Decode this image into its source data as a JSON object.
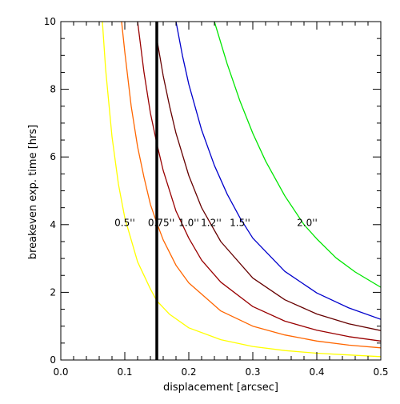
{
  "chart_data": {
    "type": "line",
    "title": "",
    "xlabel": "displacement [arcsec]",
    "ylabel": "breakeven exp. time [hrs]",
    "xlim": [
      0.0,
      0.5
    ],
    "ylim": [
      0,
      10
    ],
    "grid": false,
    "legend": "none",
    "x_ticks": [
      0.0,
      0.1,
      0.2,
      0.3,
      0.4,
      0.5
    ],
    "x_tick_labels": [
      "0.0",
      "0.1",
      "0.2",
      "0.3",
      "0.4",
      "0.5"
    ],
    "y_ticks": [
      0,
      2,
      4,
      6,
      8,
      10
    ],
    "y_tick_labels": [
      "0",
      "2",
      "4",
      "6",
      "8",
      "10"
    ],
    "series": [
      {
        "color": "#ffff00",
        "points": [
          [
            0.065,
            10.0
          ],
          [
            0.07,
            8.6
          ],
          [
            0.08,
            6.6
          ],
          [
            0.09,
            5.2
          ],
          [
            0.1,
            4.2
          ],
          [
            0.12,
            2.9
          ],
          [
            0.14,
            2.1
          ],
          [
            0.15,
            1.75
          ],
          [
            0.17,
            1.35
          ],
          [
            0.2,
            0.95
          ],
          [
            0.25,
            0.6
          ],
          [
            0.3,
            0.4
          ],
          [
            0.35,
            0.28
          ],
          [
            0.4,
            0.2
          ],
          [
            0.45,
            0.15
          ],
          [
            0.5,
            0.1
          ]
        ]
      },
      {
        "color": "#ff6600",
        "points": [
          [
            0.095,
            10.0
          ],
          [
            0.1,
            9.1
          ],
          [
            0.11,
            7.5
          ],
          [
            0.12,
            6.3
          ],
          [
            0.13,
            5.4
          ],
          [
            0.14,
            4.6
          ],
          [
            0.15,
            4.05
          ],
          [
            0.16,
            3.55
          ],
          [
            0.18,
            2.8
          ],
          [
            0.2,
            2.28
          ],
          [
            0.25,
            1.45
          ],
          [
            0.3,
            1.0
          ],
          [
            0.35,
            0.74
          ],
          [
            0.4,
            0.56
          ],
          [
            0.45,
            0.44
          ],
          [
            0.5,
            0.36
          ]
        ]
      },
      {
        "color": "#990000",
        "points": [
          [
            0.12,
            10.0
          ],
          [
            0.13,
            8.5
          ],
          [
            0.14,
            7.3
          ],
          [
            0.15,
            6.4
          ],
          [
            0.16,
            5.6
          ],
          [
            0.18,
            4.4
          ],
          [
            0.2,
            3.6
          ],
          [
            0.22,
            2.95
          ],
          [
            0.25,
            2.3
          ],
          [
            0.3,
            1.58
          ],
          [
            0.35,
            1.15
          ],
          [
            0.4,
            0.88
          ],
          [
            0.45,
            0.69
          ],
          [
            0.5,
            0.56
          ]
        ]
      },
      {
        "color": "#660000",
        "points": [
          [
            0.15,
            9.5
          ],
          [
            0.16,
            8.4
          ],
          [
            0.17,
            7.5
          ],
          [
            0.18,
            6.7
          ],
          [
            0.2,
            5.45
          ],
          [
            0.22,
            4.5
          ],
          [
            0.25,
            3.5
          ],
          [
            0.3,
            2.42
          ],
          [
            0.35,
            1.78
          ],
          [
            0.4,
            1.36
          ],
          [
            0.45,
            1.07
          ],
          [
            0.5,
            0.87
          ]
        ]
      },
      {
        "color": "#0000cc",
        "points": [
          [
            0.18,
            10.0
          ],
          [
            0.19,
            9.0
          ],
          [
            0.2,
            8.15
          ],
          [
            0.22,
            6.8
          ],
          [
            0.24,
            5.75
          ],
          [
            0.26,
            4.9
          ],
          [
            0.28,
            4.2
          ],
          [
            0.3,
            3.6
          ],
          [
            0.35,
            2.62
          ],
          [
            0.4,
            1.98
          ],
          [
            0.45,
            1.54
          ],
          [
            0.5,
            1.2
          ]
        ]
      },
      {
        "color": "#00e600",
        "points": [
          [
            0.24,
            10.0
          ],
          [
            0.26,
            8.75
          ],
          [
            0.28,
            7.65
          ],
          [
            0.3,
            6.7
          ],
          [
            0.32,
            5.88
          ],
          [
            0.35,
            4.85
          ],
          [
            0.38,
            4.0
          ],
          [
            0.4,
            3.58
          ],
          [
            0.43,
            3.02
          ],
          [
            0.46,
            2.6
          ],
          [
            0.5,
            2.15
          ]
        ]
      }
    ],
    "vertical_line": {
      "x": 0.15,
      "color": "#000000"
    },
    "annotations": [
      {
        "text": "0.5''",
        "x": 0.1,
        "y": 4.05
      },
      {
        "text": "0.75''",
        "x": 0.157,
        "y": 4.05
      },
      {
        "text": "1.0''",
        "x": 0.2,
        "y": 4.05
      },
      {
        "text": "1.2''",
        "x": 0.235,
        "y": 4.05
      },
      {
        "text": "1.5''",
        "x": 0.28,
        "y": 4.05
      },
      {
        "text": "2.0''",
        "x": 0.385,
        "y": 4.05
      }
    ]
  }
}
